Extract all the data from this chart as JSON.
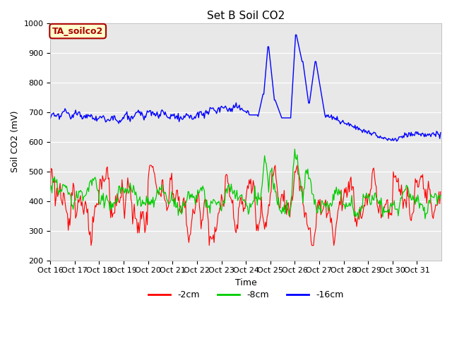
{
  "title": "Set B Soil CO2",
  "xlabel": "Time",
  "ylabel": "Soil CO2 (mV)",
  "ylim": [
    200,
    1000
  ],
  "xlim": [
    0,
    480
  ],
  "xtick_labels": [
    "Oct 16",
    "Oct 17",
    "Oct 18",
    "Oct 19",
    "Oct 20",
    "Oct 21",
    "Oct 22",
    "Oct 23",
    "Oct 24",
    "Oct 25",
    "Oct 26",
    "Oct 27",
    "Oct 28",
    "Oct 29",
    "Oct 30",
    "Oct 31"
  ],
  "ytick_values": [
    200,
    300,
    400,
    500,
    600,
    700,
    800,
    900,
    1000
  ],
  "legend_entries": [
    "-2cm",
    "-8cm",
    "-16cm"
  ],
  "line_colors": [
    "#ff0000",
    "#00cc00",
    "#0000ff"
  ],
  "bg_color": "#e8e8e8",
  "box_color": "#ffffcc",
  "box_text": "TA_soilco2",
  "box_text_color": "#aa0000",
  "title_fontsize": 11,
  "axis_label_fontsize": 9,
  "tick_fontsize": 8
}
